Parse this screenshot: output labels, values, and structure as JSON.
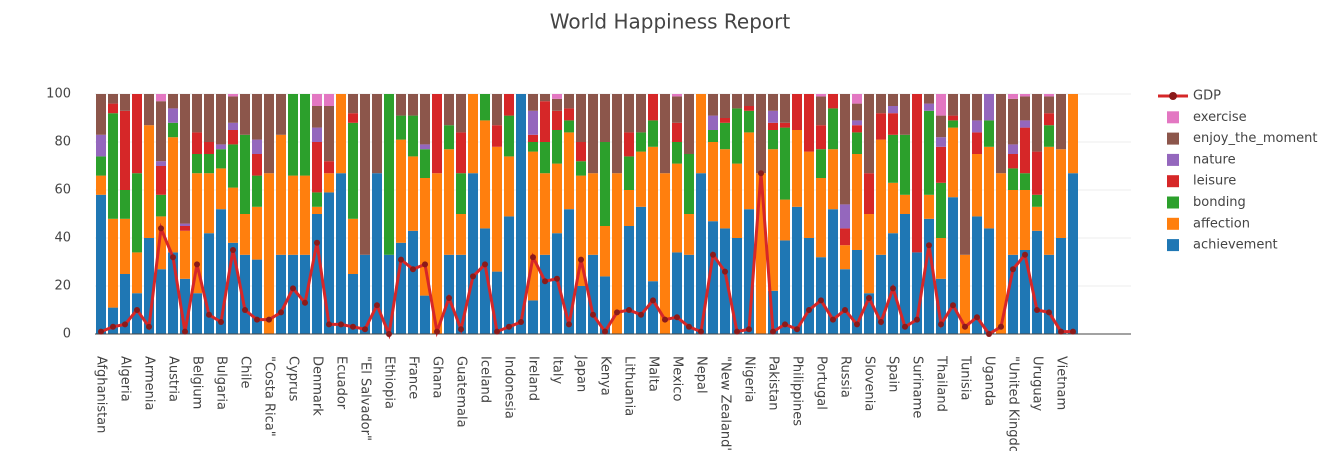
{
  "chart_data": {
    "type": "bar",
    "barmode": "stack",
    "title": "World Happiness Report",
    "categories": [
      "Afghanistan",
      null,
      "Algeria",
      null,
      "Armenia",
      null,
      "Austria",
      null,
      "Belgium",
      null,
      "Bulgaria",
      null,
      "Chile",
      null,
      "\"Costa Rica\"",
      null,
      "Cyprus",
      null,
      "Denmark",
      null,
      "Ecuador",
      null,
      "\"El Salvador\"",
      null,
      "Ethiopia",
      null,
      "France",
      null,
      "Ghana",
      null,
      "Guatemala",
      null,
      "Iceland",
      null,
      "Indonesia",
      null,
      "Ireland",
      null,
      "Italy",
      null,
      "Japan",
      null,
      "Kenya",
      null,
      "Lithuania",
      null,
      "Malta",
      null,
      "Mexico",
      null,
      "Nepal",
      null,
      "\"New Zealand\"",
      null,
      "Nigeria",
      null,
      "Pakistan",
      null,
      "Philippines",
      null,
      "Portugal",
      null,
      "Russia",
      null,
      "Slovenia",
      null,
      "Spain",
      null,
      "Suriname",
      null,
      "Thailand",
      null,
      "Tunisia",
      null,
      "Uganda",
      null,
      "\"United Kingdom\"",
      null,
      "Uruguay",
      null,
      "Vietnam",
      null
    ],
    "series": [
      {
        "name": "achievement",
        "color": "#1f77b4",
        "values": [
          58,
          11,
          25,
          17,
          40,
          27,
          34,
          23,
          17,
          42,
          52,
          38,
          33,
          31,
          0,
          33,
          33,
          33,
          50,
          59,
          67,
          25,
          33,
          67,
          33,
          38,
          43,
          16,
          0,
          33,
          33,
          67,
          44,
          26,
          49,
          100,
          14,
          33,
          42,
          52,
          20,
          33,
          24,
          0,
          45,
          53,
          22,
          0,
          34,
          33,
          67,
          47,
          44,
          40,
          52,
          0,
          18,
          39,
          53,
          40,
          32,
          52,
          27,
          35,
          17,
          33,
          42,
          50,
          34,
          48,
          23,
          57,
          0,
          49,
          44,
          0,
          33,
          35,
          43,
          33,
          40,
          67
        ]
      },
      {
        "name": "affection",
        "color": "#ff7f0e",
        "values": [
          8,
          37,
          23,
          17,
          47,
          22,
          48,
          20,
          50,
          25,
          17,
          23,
          17,
          22,
          67,
          50,
          33,
          33,
          3,
          8,
          33,
          23,
          0,
          0,
          0,
          43,
          31,
          49,
          67,
          44,
          17,
          33,
          45,
          52,
          25,
          0,
          62,
          34,
          29,
          32,
          46,
          34,
          21,
          67,
          15,
          23,
          56,
          67,
          37,
          17,
          33,
          33,
          33,
          31,
          32,
          67,
          59,
          17,
          32,
          36,
          33,
          25,
          10,
          40,
          33,
          48,
          21,
          8,
          0,
          10,
          17,
          29,
          33,
          26,
          34,
          67,
          27,
          25,
          10,
          45,
          37,
          33
        ]
      },
      {
        "name": "bonding",
        "color": "#2ca02c",
        "values": [
          8,
          44,
          12,
          33,
          0,
          9,
          6,
          0,
          8,
          8,
          8,
          18,
          33,
          13,
          0,
          0,
          34,
          34,
          6,
          0,
          0,
          40,
          0,
          0,
          67,
          10,
          17,
          12,
          0,
          10,
          17,
          0,
          11,
          0,
          17,
          0,
          4,
          13,
          14,
          5,
          6,
          0,
          35,
          0,
          14,
          8,
          11,
          0,
          9,
          25,
          0,
          5,
          11,
          23,
          9,
          0,
          8,
          30,
          0,
          0,
          12,
          17,
          0,
          9,
          0,
          0,
          20,
          25,
          0,
          35,
          23,
          3,
          0,
          0,
          11,
          0,
          9,
          7,
          5,
          9,
          0,
          0
        ]
      },
      {
        "name": "leisure",
        "color": "#d62728",
        "values": [
          0,
          4,
          33,
          33,
          0,
          12,
          0,
          2,
          9,
          5,
          0,
          6,
          0,
          9,
          0,
          0,
          0,
          0,
          21,
          5,
          0,
          4,
          0,
          0,
          0,
          0,
          0,
          0,
          33,
          0,
          17,
          0,
          0,
          9,
          9,
          0,
          3,
          17,
          8,
          5,
          8,
          0,
          0,
          0,
          10,
          0,
          11,
          0,
          8,
          0,
          0,
          0,
          2,
          0,
          2,
          0,
          3,
          2,
          15,
          24,
          10,
          6,
          7,
          3,
          17,
          11,
          9,
          0,
          66,
          0,
          15,
          2,
          0,
          9,
          0,
          0,
          6,
          19,
          18,
          5,
          0,
          0
        ]
      },
      {
        "name": "nature",
        "color": "#9467bd",
        "values": [
          9,
          0,
          0,
          0,
          0,
          2,
          6,
          1,
          0,
          0,
          2,
          3,
          0,
          6,
          0,
          0,
          0,
          0,
          6,
          0,
          0,
          0,
          0,
          0,
          0,
          0,
          0,
          2,
          0,
          0,
          0,
          0,
          0,
          0,
          0,
          0,
          10,
          0,
          0,
          0,
          0,
          0,
          0,
          0,
          0,
          0,
          0,
          0,
          0,
          0,
          0,
          6,
          0,
          0,
          0,
          0,
          5,
          0,
          0,
          0,
          0,
          0,
          10,
          2,
          0,
          0,
          3,
          0,
          0,
          3,
          4,
          0,
          0,
          5,
          11,
          0,
          4,
          3,
          0,
          0,
          0,
          0
        ]
      },
      {
        "name": "enjoy_the_moment",
        "color": "#8c564b",
        "values": [
          17,
          4,
          7,
          0,
          13,
          25,
          6,
          54,
          16,
          20,
          21,
          11,
          17,
          19,
          33,
          17,
          0,
          0,
          9,
          23,
          0,
          8,
          67,
          33,
          0,
          9,
          9,
          21,
          0,
          13,
          16,
          0,
          0,
          13,
          0,
          0,
          7,
          3,
          5,
          6,
          20,
          33,
          20,
          33,
          16,
          16,
          0,
          33,
          11,
          25,
          0,
          9,
          10,
          6,
          5,
          33,
          7,
          12,
          0,
          0,
          12,
          0,
          46,
          7,
          33,
          8,
          5,
          17,
          0,
          4,
          9,
          9,
          67,
          11,
          0,
          33,
          19,
          10,
          24,
          7,
          23,
          0
        ]
      },
      {
        "name": "exercise",
        "color": "#e377c2",
        "values": [
          0,
          0,
          0,
          0,
          0,
          3,
          0,
          0,
          0,
          0,
          0,
          1,
          0,
          0,
          0,
          0,
          0,
          0,
          5,
          5,
          0,
          0,
          0,
          0,
          0,
          0,
          0,
          0,
          0,
          0,
          0,
          0,
          0,
          0,
          0,
          0,
          0,
          0,
          2,
          0,
          0,
          0,
          0,
          0,
          0,
          0,
          0,
          0,
          1,
          0,
          0,
          0,
          0,
          0,
          0,
          0,
          0,
          0,
          0,
          0,
          1,
          0,
          0,
          4,
          0,
          0,
          0,
          0,
          0,
          0,
          9,
          0,
          0,
          0,
          0,
          0,
          2,
          1,
          0,
          1,
          0,
          0
        ]
      },
      {
        "name": "GDP",
        "type": "line",
        "color": "#d62728",
        "marker_color": "#8b1a1a",
        "values": [
          1,
          3,
          4,
          10,
          3,
          44,
          32,
          1,
          29,
          8,
          5,
          35,
          10,
          6,
          6,
          9,
          19,
          13,
          38,
          4,
          4,
          3,
          2,
          12,
          0,
          31,
          27,
          29,
          1,
          15,
          2,
          24,
          29,
          1,
          3,
          5,
          32,
          22,
          23,
          4,
          31,
          8,
          1,
          9,
          10,
          8,
          14,
          6,
          7,
          3,
          1,
          33,
          26,
          1,
          2,
          67,
          1,
          4,
          2,
          10,
          14,
          6,
          10,
          4,
          15,
          5,
          19,
          3,
          6,
          37,
          4,
          12,
          3,
          7,
          0,
          3,
          27,
          33,
          10,
          9,
          1,
          1
        ]
      }
    ],
    "ylim": [
      0,
      100
    ],
    "yticks": [
      0,
      20,
      40,
      60,
      80,
      100
    ],
    "grid": true
  }
}
